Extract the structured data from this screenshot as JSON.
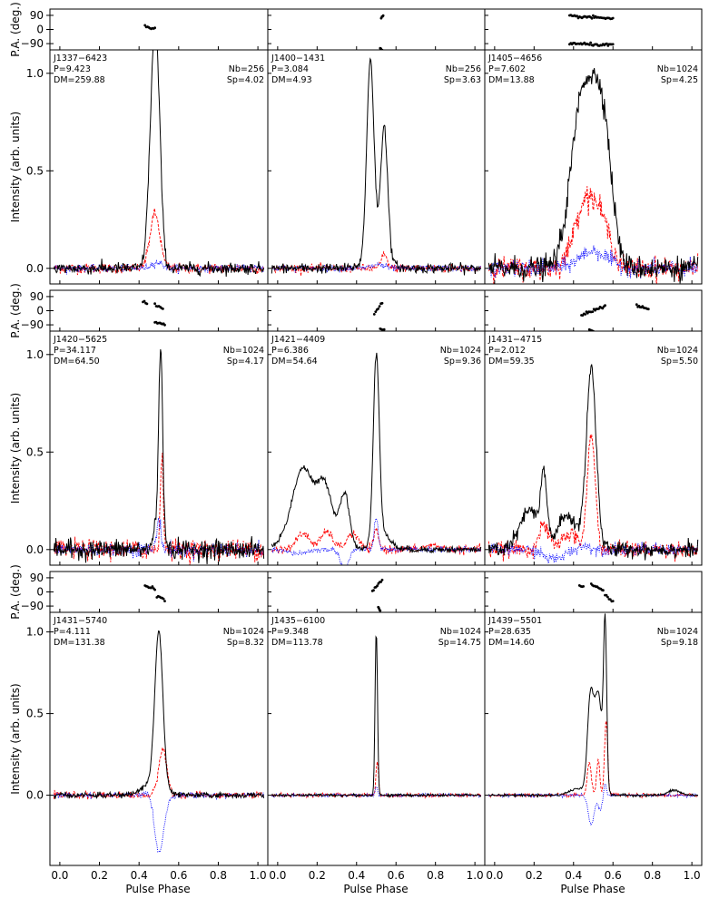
{
  "figure": {
    "xlabel": "Pulse Phase",
    "ylabel_intensity": "Intensity (arb. units)",
    "ylabel_pa": "P.A. (deg.)",
    "x_ticks": [
      "0.0",
      "0.2",
      "0.4",
      "0.6",
      "0.8",
      "1.0"
    ],
    "x_tick_values": [
      0.0,
      0.2,
      0.4,
      0.6,
      0.8,
      1.0
    ],
    "xlim": [
      -0.05,
      1.05
    ],
    "pa_ylim": [
      -130,
      130
    ],
    "pa_ticks": [
      "90",
      "0",
      "−90"
    ],
    "pa_tick_values": [
      90,
      0,
      -90
    ],
    "colors": {
      "total": "#000000",
      "linear": "#ff0000",
      "circular": "#0000ff",
      "pa": "#000000"
    },
    "linestyles": {
      "total": "solid",
      "linear": "dashed",
      "circular": "dotted"
    }
  },
  "chart_data": [
    {
      "type": "line",
      "name": "J1337−6423",
      "period_label": "P=9.423",
      "dm_label": "DM=259.88",
      "nb_label": "Nb=256",
      "sp_label": "Sp=4.02",
      "ylim": [
        -0.08,
        1.12
      ],
      "y_ticks": [
        "0.0",
        "0.5",
        "1.0"
      ],
      "y_tick_values": [
        0.0,
        0.5,
        1.0
      ],
      "noise": {
        "total": 0.015,
        "linear": 0.013,
        "circular": 0.009
      },
      "components": {
        "total": [
          [
            0.47,
            0.022,
            0.68
          ],
          [
            0.49,
            0.02,
            0.72
          ]
        ],
        "linear": [
          [
            0.48,
            0.025,
            0.28
          ]
        ],
        "circular": [
          [
            0.49,
            0.03,
            0.03
          ]
        ]
      },
      "pa_segments": [
        {
          "x": [
            0.43,
            0.48
          ],
          "y": [
            25,
            5
          ]
        }
      ]
    },
    {
      "type": "line",
      "name": "J1400−1431",
      "period_label": "P=3.084",
      "dm_label": "DM=4.93",
      "nb_label": "Nb=256",
      "sp_label": "Sp=3.63",
      "ylim": [
        -0.08,
        1.12
      ],
      "y_ticks": [
        "0.0",
        "0.5",
        "1.0"
      ],
      "y_tick_values": [
        0.0,
        0.5,
        1.0
      ],
      "noise": {
        "total": 0.012,
        "linear": 0.01,
        "circular": 0.008
      },
      "components": {
        "total": [
          [
            0.47,
            0.018,
            1.0
          ],
          [
            0.54,
            0.017,
            0.66
          ],
          [
            0.505,
            0.05,
            0.1
          ]
        ],
        "linear": [
          [
            0.54,
            0.015,
            0.07
          ]
        ],
        "circular": [
          [
            0.51,
            0.03,
            0.02
          ]
        ]
      },
      "pa_segments": [
        {
          "x": [
            0.525,
            0.535
          ],
          "y": [
            75,
            90
          ]
        },
        {
          "x": [
            0.52,
            0.53
          ],
          "y": [
            -120,
            -130
          ]
        }
      ]
    },
    {
      "type": "line",
      "name": "J1405−4656",
      "period_label": "P=7.602",
      "dm_label": "DM=13.88",
      "nb_label": "Nb=1024",
      "sp_label": "Sp=4.25",
      "ylim": [
        -0.08,
        1.12
      ],
      "y_ticks": [
        "0.0",
        "0.5",
        "1.0"
      ],
      "y_tick_values": [
        0.0,
        0.5,
        1.0
      ],
      "noise": {
        "total": 0.03,
        "linear": 0.028,
        "circular": 0.02
      },
      "components": {
        "total": [
          [
            0.45,
            0.06,
            0.9
          ],
          [
            0.55,
            0.045,
            0.65
          ]
        ],
        "linear": [
          [
            0.46,
            0.055,
            0.34
          ],
          [
            0.55,
            0.045,
            0.18
          ]
        ],
        "circular": [
          [
            0.5,
            0.07,
            0.09
          ]
        ]
      },
      "pa_segments": [
        {
          "x": [
            0.38,
            0.6
          ],
          "y": [
            85,
            70
          ]
        },
        {
          "x": [
            0.38,
            0.6
          ],
          "y": [
            -90,
            -100
          ]
        }
      ]
    },
    {
      "type": "line",
      "name": "J1420−5625",
      "period_label": "P=34.117",
      "dm_label": "DM=64.50",
      "nb_label": "Nb=1024",
      "sp_label": "Sp=4.17",
      "ylim": [
        -0.08,
        1.12
      ],
      "y_ticks": [
        "0.0",
        "0.5",
        "1.0"
      ],
      "y_tick_values": [
        0.0,
        0.5,
        1.0
      ],
      "noise": {
        "total": 0.025,
        "linear": 0.025,
        "circular": 0.018
      },
      "components": {
        "total": [
          [
            0.51,
            0.01,
            0.98
          ],
          [
            0.49,
            0.015,
            0.15
          ]
        ],
        "linear": [
          [
            0.515,
            0.008,
            0.47
          ]
        ],
        "circular": [
          [
            0.5,
            0.01,
            0.16
          ]
        ]
      },
      "pa_segments": [
        {
          "x": [
            0.42,
            0.44
          ],
          "y": [
            60,
            40
          ]
        },
        {
          "x": [
            0.48,
            0.53
          ],
          "y": [
            -70,
            -90
          ]
        },
        {
          "x": [
            0.48,
            0.52
          ],
          "y": [
            40,
            10
          ]
        }
      ]
    },
    {
      "type": "line",
      "name": "J1421−4409",
      "period_label": "P=6.386",
      "dm_label": "DM=54.64",
      "nb_label": "Nb=1024",
      "sp_label": "Sp=9.36",
      "ylim": [
        -0.08,
        1.12
      ],
      "y_ticks": [
        "0.0",
        "0.5",
        "1.0"
      ],
      "y_tick_values": [
        0.0,
        0.5,
        1.0
      ],
      "noise": {
        "total": 0.008,
        "linear": 0.01,
        "circular": 0.007
      },
      "components": {
        "total": [
          [
            0.13,
            0.05,
            0.4
          ],
          [
            0.24,
            0.04,
            0.32
          ],
          [
            0.34,
            0.025,
            0.28
          ],
          [
            0.05,
            0.05,
            0.05
          ],
          [
            0.5,
            0.015,
            0.95
          ],
          [
            0.53,
            0.04,
            0.08
          ]
        ],
        "linear": [
          [
            0.13,
            0.035,
            0.08
          ],
          [
            0.25,
            0.03,
            0.09
          ],
          [
            0.38,
            0.03,
            0.08
          ],
          [
            0.5,
            0.012,
            0.1
          ],
          [
            0.78,
            0.04,
            0.02
          ]
        ],
        "circular": [
          [
            0.34,
            0.02,
            -0.1
          ],
          [
            0.5,
            0.01,
            0.16
          ],
          [
            0.1,
            0.05,
            -0.02
          ]
        ]
      },
      "pa_segments": [
        {
          "x": [
            0.49,
            0.53
          ],
          "y": [
            -20,
            50
          ]
        },
        {
          "x": [
            0.52,
            0.54
          ],
          "y": [
            -110,
            -120
          ]
        }
      ]
    },
    {
      "type": "line",
      "name": "J1431−4715",
      "period_label": "P=2.012",
      "dm_label": "DM=59.35",
      "nb_label": "Nb=1024",
      "sp_label": "Sp=5.50",
      "ylim": [
        -0.08,
        1.12
      ],
      "y_ticks": [
        "0.0",
        "0.5",
        "1.0"
      ],
      "y_tick_values": [
        0.0,
        0.5,
        1.0
      ],
      "noise": {
        "total": 0.02,
        "linear": 0.02,
        "circular": 0.015
      },
      "components": {
        "total": [
          [
            0.25,
            0.015,
            0.32
          ],
          [
            0.18,
            0.05,
            0.2
          ],
          [
            0.37,
            0.05,
            0.17
          ],
          [
            0.49,
            0.025,
            0.92
          ]
        ],
        "linear": [
          [
            0.25,
            0.025,
            0.12
          ],
          [
            0.38,
            0.04,
            0.08
          ],
          [
            0.49,
            0.02,
            0.58
          ]
        ],
        "circular": [
          [
            0.3,
            0.05,
            -0.05
          ],
          [
            0.45,
            0.03,
            0.02
          ]
        ]
      },
      "pa_segments": [
        {
          "x": [
            0.44,
            0.56
          ],
          "y": [
            -30,
            30
          ]
        },
        {
          "x": [
            0.72,
            0.78
          ],
          "y": [
            30,
            10
          ]
        },
        {
          "x": [
            0.48,
            0.5
          ],
          "y": [
            -115,
            -125
          ]
        }
      ]
    },
    {
      "type": "line",
      "name": "J1431−5740",
      "period_label": "P=4.111",
      "dm_label": "DM=131.38",
      "nb_label": "Nb=1024",
      "sp_label": "Sp=8.32",
      "ylim": [
        -0.43,
        1.12
      ],
      "y_ticks": [
        "0.0",
        "0.5",
        "1.0"
      ],
      "y_tick_values": [
        0.0,
        0.5,
        1.0
      ],
      "noise": {
        "total": 0.008,
        "linear": 0.01,
        "circular": 0.008
      },
      "components": {
        "total": [
          [
            0.5,
            0.02,
            0.94
          ],
          [
            0.47,
            0.05,
            0.08
          ]
        ],
        "linear": [
          [
            0.52,
            0.02,
            0.29
          ]
        ],
        "circular": [
          [
            0.5,
            0.025,
            -0.35
          ],
          [
            0.46,
            0.02,
            0.05
          ]
        ]
      },
      "pa_segments": [
        {
          "x": [
            0.43,
            0.48
          ],
          "y": [
            40,
            20
          ]
        },
        {
          "x": [
            0.49,
            0.53
          ],
          "y": [
            -30,
            -50
          ]
        }
      ]
    },
    {
      "type": "line",
      "name": "J1435−6100",
      "period_label": "P=9.348",
      "dm_label": "DM=113.78",
      "nb_label": "Nb=1024",
      "sp_label": "Sp=14.75",
      "ylim": [
        -0.43,
        1.12
      ],
      "y_ticks": [
        "0.0",
        "0.5",
        "1.0"
      ],
      "y_tick_values": [
        0.0,
        0.5,
        1.0
      ],
      "noise": {
        "total": 0.004,
        "linear": 0.006,
        "circular": 0.005
      },
      "components": {
        "total": [
          [
            0.5,
            0.006,
            1.0
          ]
        ],
        "linear": [
          [
            0.505,
            0.006,
            0.21
          ]
        ],
        "circular": [
          [
            0.5,
            0.006,
            0.05
          ]
        ]
      },
      "pa_segments": [
        {
          "x": [
            0.48,
            0.53
          ],
          "y": [
            10,
            75
          ]
        },
        {
          "x": [
            0.51,
            0.52
          ],
          "y": [
            -100,
            -125
          ]
        }
      ]
    },
    {
      "type": "line",
      "name": "J1439−5501",
      "period_label": "P=28.635",
      "dm_label": "DM=14.60",
      "nb_label": "Nb=1024",
      "sp_label": "Sp=9.18",
      "ylim": [
        -0.43,
        1.12
      ],
      "y_ticks": [
        "0.0",
        "0.5",
        "1.0"
      ],
      "y_tick_values": [
        0.0,
        0.5,
        1.0
      ],
      "noise": {
        "total": 0.004,
        "linear": 0.006,
        "circular": 0.005
      },
      "components": {
        "total": [
          [
            0.485,
            0.015,
            0.55
          ],
          [
            0.525,
            0.02,
            0.62
          ],
          [
            0.56,
            0.008,
            0.98
          ],
          [
            0.91,
            0.03,
            0.03
          ],
          [
            0.42,
            0.04,
            0.04
          ]
        ],
        "linear": [
          [
            0.48,
            0.01,
            0.2
          ],
          [
            0.525,
            0.008,
            0.22
          ],
          [
            0.565,
            0.008,
            0.45
          ]
        ],
        "circular": [
          [
            0.49,
            0.015,
            -0.18
          ],
          [
            0.535,
            0.01,
            -0.08
          ],
          [
            0.56,
            0.006,
            0.08
          ]
        ]
      },
      "pa_segments": [
        {
          "x": [
            0.43,
            0.45
          ],
          "y": [
            40,
            30
          ]
        },
        {
          "x": [
            0.49,
            0.55
          ],
          "y": [
            50,
            10
          ]
        },
        {
          "x": [
            0.56,
            0.6
          ],
          "y": [
            -20,
            -60
          ]
        }
      ]
    }
  ]
}
